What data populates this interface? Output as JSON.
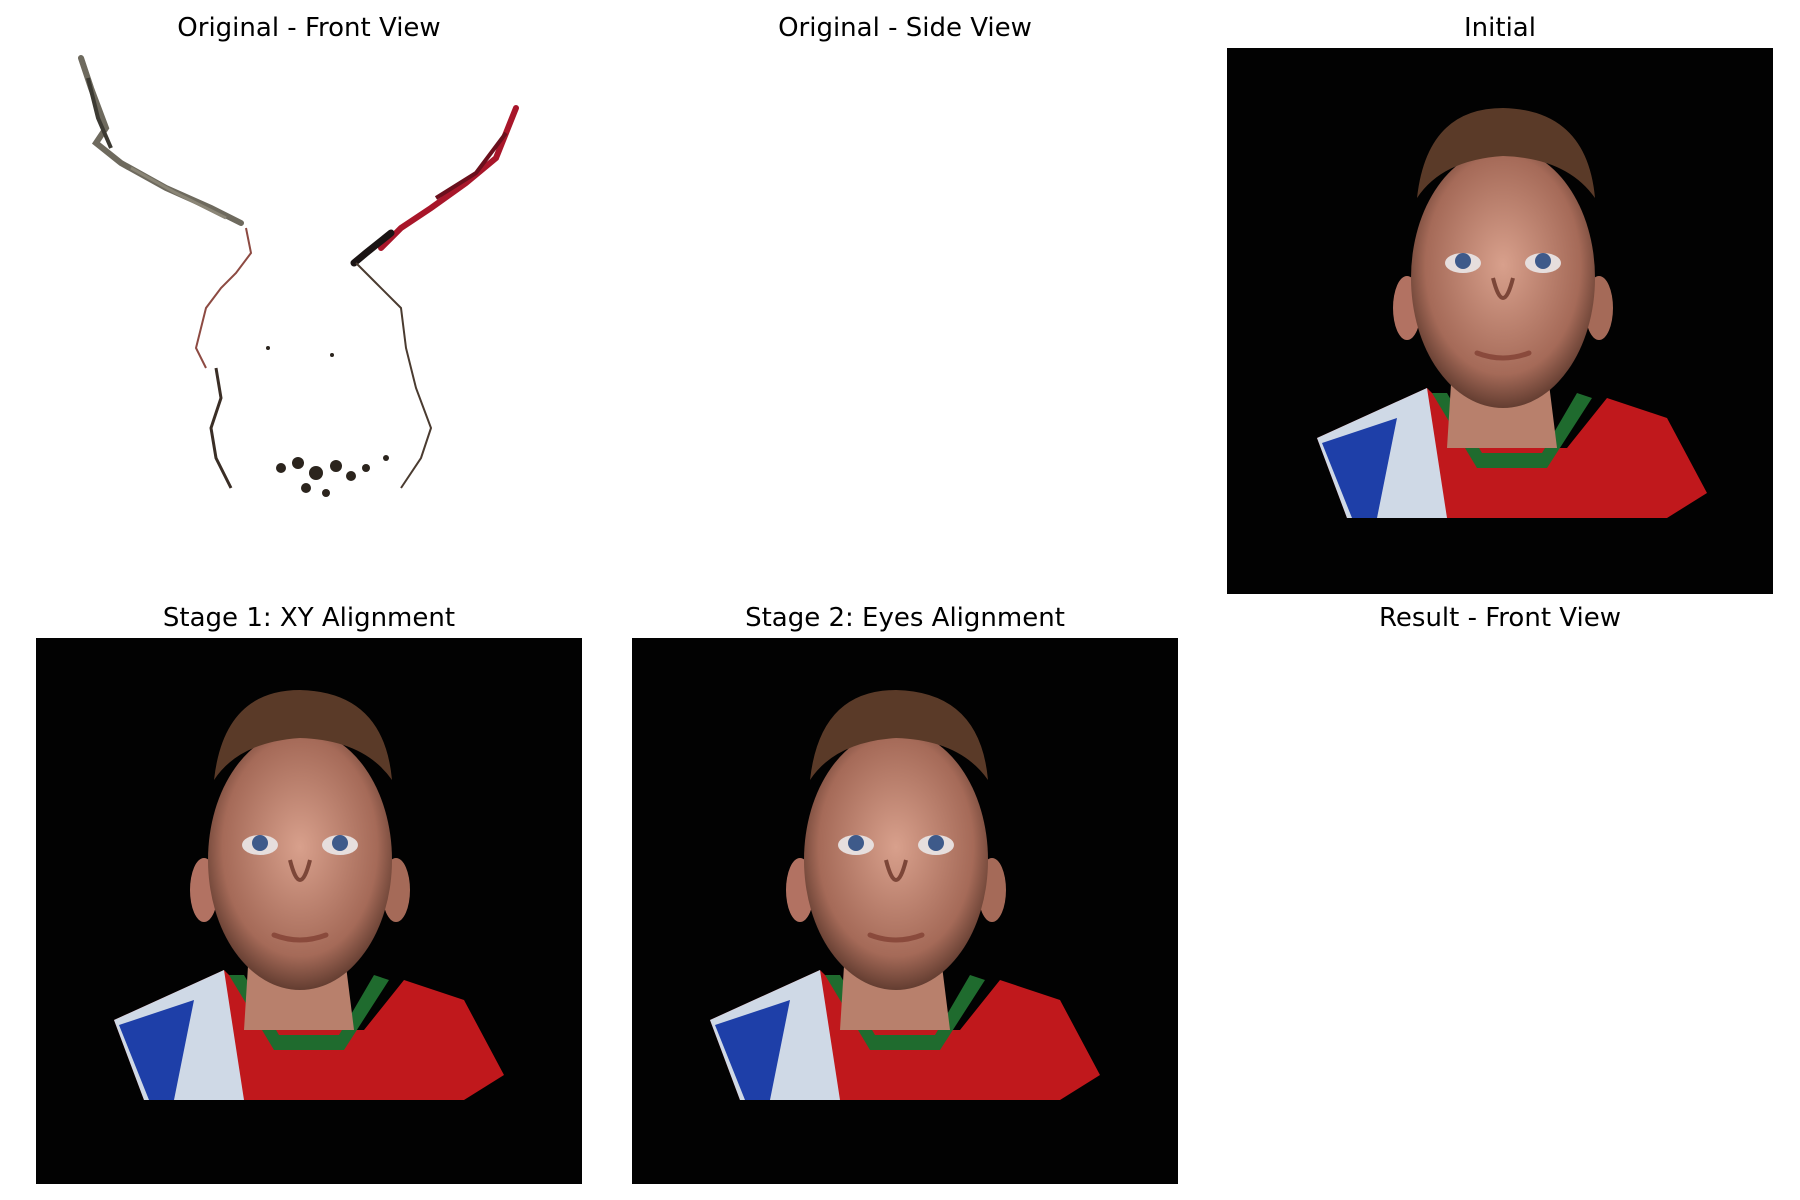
{
  "panels": [
    {
      "title": "Original - Front View",
      "content": "sparse-point-cloud-front",
      "background": "#ffffff"
    },
    {
      "title": "Original - Side View",
      "content": "empty",
      "background": "#ffffff"
    },
    {
      "title": "Initial",
      "content": "face-render",
      "background": "#020202"
    },
    {
      "title": "Stage 1: XY Alignment",
      "content": "face-render",
      "background": "#020202"
    },
    {
      "title": "Stage 2: Eyes Alignment",
      "content": "face-render",
      "background": "#020202"
    },
    {
      "title": "Result - Front View",
      "content": "empty",
      "background": "#ffffff"
    }
  ],
  "colors": {
    "skin": "#c99382",
    "hair": "#5a3a28",
    "shirt_red": "#c0181c",
    "collar_green": "#1f6b2e",
    "shirt_white": "#cfd9e6",
    "shirt_blue": "#1e3fa8"
  }
}
